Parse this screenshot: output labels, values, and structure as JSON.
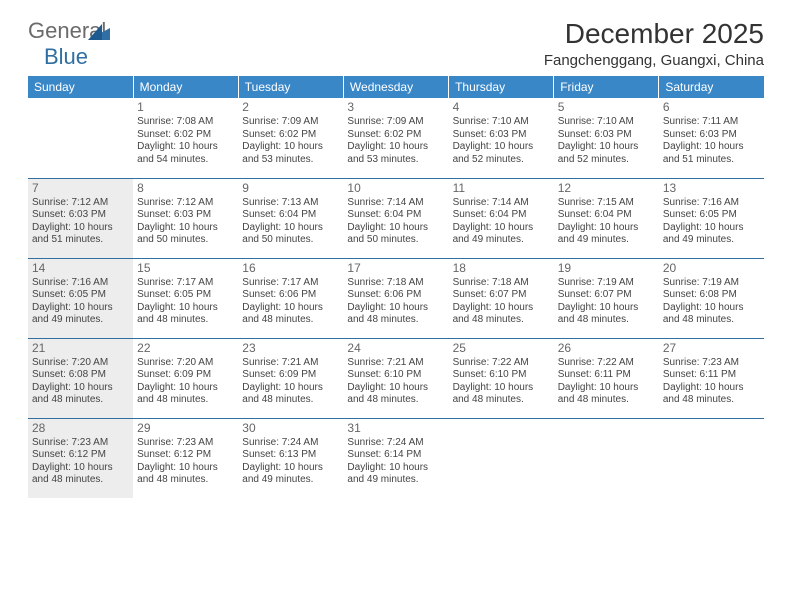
{
  "brand": {
    "part1": "General",
    "part2": "Blue"
  },
  "title": "December 2025",
  "location": "Fangchenggang, Guangxi, China",
  "header_bg": "#3a87c8",
  "header_fg": "#ffffff",
  "border_color": "#2f6fa3",
  "shaded_bg": "#ededed",
  "text_color": "#333333",
  "weekdays": [
    "Sunday",
    "Monday",
    "Tuesday",
    "Wednesday",
    "Thursday",
    "Friday",
    "Saturday"
  ],
  "weeks": [
    [
      {
        "day": "",
        "shaded": false,
        "sunrise": "",
        "sunset": "",
        "daylight": ""
      },
      {
        "day": "1",
        "shaded": false,
        "sunrise": "Sunrise: 7:08 AM",
        "sunset": "Sunset: 6:02 PM",
        "daylight": "Daylight: 10 hours and 54 minutes."
      },
      {
        "day": "2",
        "shaded": false,
        "sunrise": "Sunrise: 7:09 AM",
        "sunset": "Sunset: 6:02 PM",
        "daylight": "Daylight: 10 hours and 53 minutes."
      },
      {
        "day": "3",
        "shaded": false,
        "sunrise": "Sunrise: 7:09 AM",
        "sunset": "Sunset: 6:02 PM",
        "daylight": "Daylight: 10 hours and 53 minutes."
      },
      {
        "day": "4",
        "shaded": false,
        "sunrise": "Sunrise: 7:10 AM",
        "sunset": "Sunset: 6:03 PM",
        "daylight": "Daylight: 10 hours and 52 minutes."
      },
      {
        "day": "5",
        "shaded": false,
        "sunrise": "Sunrise: 7:10 AM",
        "sunset": "Sunset: 6:03 PM",
        "daylight": "Daylight: 10 hours and 52 minutes."
      },
      {
        "day": "6",
        "shaded": false,
        "sunrise": "Sunrise: 7:11 AM",
        "sunset": "Sunset: 6:03 PM",
        "daylight": "Daylight: 10 hours and 51 minutes."
      }
    ],
    [
      {
        "day": "7",
        "shaded": true,
        "sunrise": "Sunrise: 7:12 AM",
        "sunset": "Sunset: 6:03 PM",
        "daylight": "Daylight: 10 hours and 51 minutes."
      },
      {
        "day": "8",
        "shaded": false,
        "sunrise": "Sunrise: 7:12 AM",
        "sunset": "Sunset: 6:03 PM",
        "daylight": "Daylight: 10 hours and 50 minutes."
      },
      {
        "day": "9",
        "shaded": false,
        "sunrise": "Sunrise: 7:13 AM",
        "sunset": "Sunset: 6:04 PM",
        "daylight": "Daylight: 10 hours and 50 minutes."
      },
      {
        "day": "10",
        "shaded": false,
        "sunrise": "Sunrise: 7:14 AM",
        "sunset": "Sunset: 6:04 PM",
        "daylight": "Daylight: 10 hours and 50 minutes."
      },
      {
        "day": "11",
        "shaded": false,
        "sunrise": "Sunrise: 7:14 AM",
        "sunset": "Sunset: 6:04 PM",
        "daylight": "Daylight: 10 hours and 49 minutes."
      },
      {
        "day": "12",
        "shaded": false,
        "sunrise": "Sunrise: 7:15 AM",
        "sunset": "Sunset: 6:04 PM",
        "daylight": "Daylight: 10 hours and 49 minutes."
      },
      {
        "day": "13",
        "shaded": false,
        "sunrise": "Sunrise: 7:16 AM",
        "sunset": "Sunset: 6:05 PM",
        "daylight": "Daylight: 10 hours and 49 minutes."
      }
    ],
    [
      {
        "day": "14",
        "shaded": true,
        "sunrise": "Sunrise: 7:16 AM",
        "sunset": "Sunset: 6:05 PM",
        "daylight": "Daylight: 10 hours and 49 minutes."
      },
      {
        "day": "15",
        "shaded": false,
        "sunrise": "Sunrise: 7:17 AM",
        "sunset": "Sunset: 6:05 PM",
        "daylight": "Daylight: 10 hours and 48 minutes."
      },
      {
        "day": "16",
        "shaded": false,
        "sunrise": "Sunrise: 7:17 AM",
        "sunset": "Sunset: 6:06 PM",
        "daylight": "Daylight: 10 hours and 48 minutes."
      },
      {
        "day": "17",
        "shaded": false,
        "sunrise": "Sunrise: 7:18 AM",
        "sunset": "Sunset: 6:06 PM",
        "daylight": "Daylight: 10 hours and 48 minutes."
      },
      {
        "day": "18",
        "shaded": false,
        "sunrise": "Sunrise: 7:18 AM",
        "sunset": "Sunset: 6:07 PM",
        "daylight": "Daylight: 10 hours and 48 minutes."
      },
      {
        "day": "19",
        "shaded": false,
        "sunrise": "Sunrise: 7:19 AM",
        "sunset": "Sunset: 6:07 PM",
        "daylight": "Daylight: 10 hours and 48 minutes."
      },
      {
        "day": "20",
        "shaded": false,
        "sunrise": "Sunrise: 7:19 AM",
        "sunset": "Sunset: 6:08 PM",
        "daylight": "Daylight: 10 hours and 48 minutes."
      }
    ],
    [
      {
        "day": "21",
        "shaded": true,
        "sunrise": "Sunrise: 7:20 AM",
        "sunset": "Sunset: 6:08 PM",
        "daylight": "Daylight: 10 hours and 48 minutes."
      },
      {
        "day": "22",
        "shaded": false,
        "sunrise": "Sunrise: 7:20 AM",
        "sunset": "Sunset: 6:09 PM",
        "daylight": "Daylight: 10 hours and 48 minutes."
      },
      {
        "day": "23",
        "shaded": false,
        "sunrise": "Sunrise: 7:21 AM",
        "sunset": "Sunset: 6:09 PM",
        "daylight": "Daylight: 10 hours and 48 minutes."
      },
      {
        "day": "24",
        "shaded": false,
        "sunrise": "Sunrise: 7:21 AM",
        "sunset": "Sunset: 6:10 PM",
        "daylight": "Daylight: 10 hours and 48 minutes."
      },
      {
        "day": "25",
        "shaded": false,
        "sunrise": "Sunrise: 7:22 AM",
        "sunset": "Sunset: 6:10 PM",
        "daylight": "Daylight: 10 hours and 48 minutes."
      },
      {
        "day": "26",
        "shaded": false,
        "sunrise": "Sunrise: 7:22 AM",
        "sunset": "Sunset: 6:11 PM",
        "daylight": "Daylight: 10 hours and 48 minutes."
      },
      {
        "day": "27",
        "shaded": false,
        "sunrise": "Sunrise: 7:23 AM",
        "sunset": "Sunset: 6:11 PM",
        "daylight": "Daylight: 10 hours and 48 minutes."
      }
    ],
    [
      {
        "day": "28",
        "shaded": true,
        "sunrise": "Sunrise: 7:23 AM",
        "sunset": "Sunset: 6:12 PM",
        "daylight": "Daylight: 10 hours and 48 minutes."
      },
      {
        "day": "29",
        "shaded": false,
        "sunrise": "Sunrise: 7:23 AM",
        "sunset": "Sunset: 6:12 PM",
        "daylight": "Daylight: 10 hours and 48 minutes."
      },
      {
        "day": "30",
        "shaded": false,
        "sunrise": "Sunrise: 7:24 AM",
        "sunset": "Sunset: 6:13 PM",
        "daylight": "Daylight: 10 hours and 49 minutes."
      },
      {
        "day": "31",
        "shaded": false,
        "sunrise": "Sunrise: 7:24 AM",
        "sunset": "Sunset: 6:14 PM",
        "daylight": "Daylight: 10 hours and 49 minutes."
      },
      {
        "day": "",
        "shaded": false,
        "sunrise": "",
        "sunset": "",
        "daylight": ""
      },
      {
        "day": "",
        "shaded": false,
        "sunrise": "",
        "sunset": "",
        "daylight": ""
      },
      {
        "day": "",
        "shaded": false,
        "sunrise": "",
        "sunset": "",
        "daylight": ""
      }
    ]
  ]
}
